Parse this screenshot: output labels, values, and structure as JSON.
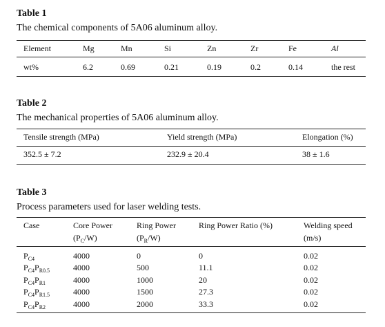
{
  "tables": [
    {
      "label": "Table 1",
      "caption": "The chemical components of 5A06 aluminum alloy.",
      "header": [
        "Element",
        "Mg",
        "Mn",
        "Si",
        "Zn",
        "Zr",
        "Fe",
        "Al"
      ],
      "rows": [
        [
          "wt%",
          "6.2",
          "0.69",
          "0.21",
          "0.19",
          "0.2",
          "0.14",
          "the rest"
        ]
      ]
    },
    {
      "label": "Table 2",
      "caption": "The mechanical properties of 5A06 aluminum alloy.",
      "header": [
        "Tensile strength (MPa)",
        "Yield strength (MPa)",
        "Elongation (%)"
      ],
      "rows": [
        [
          "352.5 ± 7.2",
          "232.9 ± 20.4",
          "38 ± 1.6"
        ]
      ]
    },
    {
      "label": "Table 3",
      "caption": "Process parameters used for laser welding tests.",
      "header": [
        [
          [
            "Case"
          ]
        ],
        [
          [
            "Core Power"
          ],
          [
            "(P",
            "C",
            "/W)"
          ]
        ],
        [
          [
            "Ring Power"
          ],
          [
            "(P",
            "R",
            "/W)"
          ]
        ],
        [
          [
            "Ring Power Ratio (%)"
          ]
        ],
        [
          [
            "Welding speed"
          ],
          [
            "(m/s)"
          ]
        ]
      ],
      "rows": [
        [
          [
            "P",
            "C4"
          ],
          "4000",
          "0",
          "0",
          "0.02"
        ],
        [
          [
            "P",
            "C4",
            "P",
            "R0.5"
          ],
          "4000",
          "500",
          "11.1",
          "0.02"
        ],
        [
          [
            "P",
            "C4",
            "P",
            "R1"
          ],
          "4000",
          "1000",
          "20",
          "0.02"
        ],
        [
          [
            "P",
            "C4",
            "P",
            "R1.5"
          ],
          "4000",
          "1500",
          "27.3",
          "0.02"
        ],
        [
          [
            "P",
            "C4",
            "P",
            "R2"
          ],
          "4000",
          "2000",
          "33.3",
          "0.02"
        ]
      ]
    }
  ]
}
